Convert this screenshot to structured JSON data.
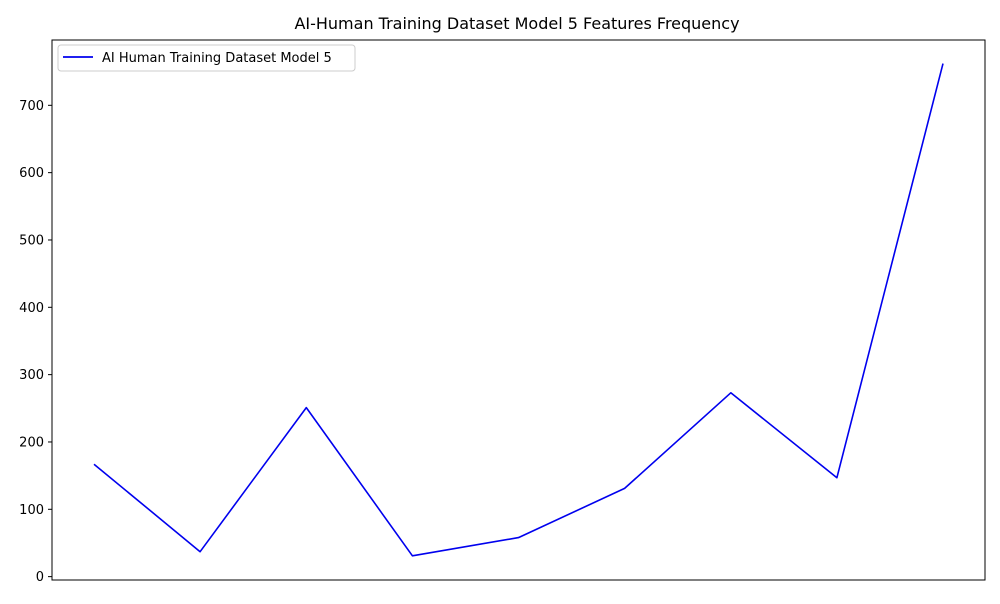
{
  "chart_data": {
    "type": "line",
    "title": "AI-Human Training Dataset Model 5 Features Frequency",
    "xlabel": "",
    "ylabel": "",
    "x": [
      0,
      1,
      2,
      3,
      4,
      5,
      6,
      7,
      8
    ],
    "x_tick_labels_visible": false,
    "series": [
      {
        "name": "AI Human Training Dataset Model 5",
        "color": "#0000ee",
        "values": [
          167,
          37,
          251,
          31,
          58,
          131,
          273,
          147,
          762
        ]
      }
    ],
    "ylim": [
      -5,
      797
    ],
    "yticks": [
      0,
      100,
      200,
      300,
      400,
      500,
      600,
      700
    ],
    "grid": false,
    "legend": {
      "location": "upper-left",
      "entries": [
        "AI Human Training Dataset Model 5"
      ]
    }
  }
}
